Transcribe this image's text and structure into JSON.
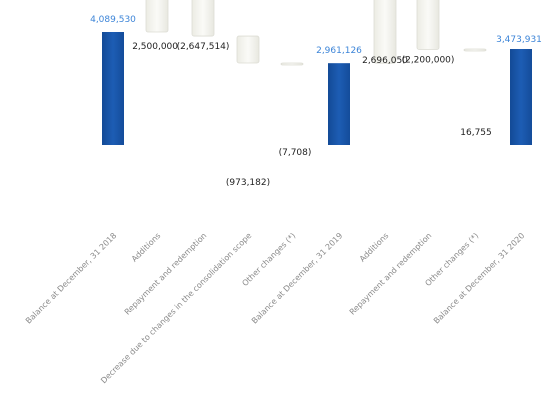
{
  "chart_data": {
    "type": "waterfall",
    "categories": [
      "Balance at December, 31 2018",
      "Additions",
      "Repayment and redemption",
      "Decrease due to changes in the consolidation scope",
      "Other changes (*)",
      "Balance at December, 31 2019",
      "Additions",
      "Repayment and redemption",
      "Other changes (*)",
      "Balance at December, 31 2020"
    ],
    "values": [
      4089530,
      2500000,
      -2647514,
      -973182,
      -7708,
      2961126,
      2696050,
      -2200000,
      16755,
      3473931
    ],
    "value_labels": [
      "4,089,530",
      "2,500,000",
      "(2,647,514)",
      "(973,182)",
      "(7,708)",
      "2,961,126",
      "2,696,050",
      "(2,200,000)",
      "16,755",
      "3,473,931"
    ],
    "kinds": [
      "total",
      "delta",
      "delta",
      "delta",
      "delta",
      "total",
      "delta",
      "delta",
      "delta",
      "total"
    ],
    "colors": {
      "total": "#1a56a8",
      "total_label": "#3d85d8",
      "delta": "#f4f4ef",
      "delta_stroke": "#dcdcd4",
      "delta_label": "#222222",
      "category": "#8a8a8a"
    }
  }
}
